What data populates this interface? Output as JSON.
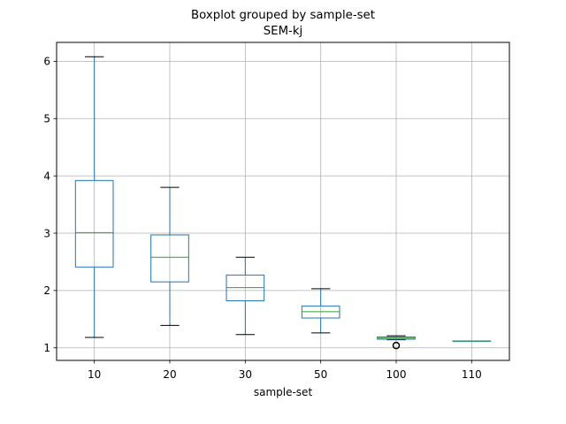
{
  "chart_data": {
    "type": "boxplot",
    "title": "Boxplot grouped by sample-set",
    "subtitle": "SEM-kj",
    "xlabel": "sample-set",
    "ylabel": "",
    "ylim": [
      0.78,
      6.33
    ],
    "yticks": [
      1,
      2,
      3,
      4,
      5,
      6
    ],
    "grid": true,
    "colors": {
      "box": "#1f77b4",
      "median": "#2ca02c",
      "whisker": "#1f77b4",
      "cap": "#000000",
      "grid": "#b0b0b0",
      "flier": "#000000"
    },
    "categories": [
      "10",
      "20",
      "30",
      "50",
      "100",
      "110"
    ],
    "boxes": [
      {
        "category": "10",
        "whislo": 1.18,
        "q1": 2.41,
        "med": 3.01,
        "q3": 3.92,
        "whishi": 6.08,
        "fliers": []
      },
      {
        "category": "20",
        "whislo": 1.39,
        "q1": 2.15,
        "med": 2.58,
        "q3": 2.97,
        "whishi": 3.8,
        "fliers": []
      },
      {
        "category": "30",
        "whislo": 1.23,
        "q1": 1.82,
        "med": 2.05,
        "q3": 2.27,
        "whishi": 2.58,
        "fliers": []
      },
      {
        "category": "50",
        "whislo": 1.26,
        "q1": 1.52,
        "med": 1.63,
        "q3": 1.73,
        "whishi": 2.03,
        "fliers": []
      },
      {
        "category": "100",
        "whislo": 1.14,
        "q1": 1.15,
        "med": 1.17,
        "q3": 1.19,
        "whishi": 1.21,
        "fliers": [
          1.04
        ]
      },
      {
        "category": "110",
        "whislo": 1.12,
        "q1": 1.12,
        "med": 1.12,
        "q3": 1.12,
        "whishi": 1.12,
        "fliers": []
      }
    ]
  }
}
